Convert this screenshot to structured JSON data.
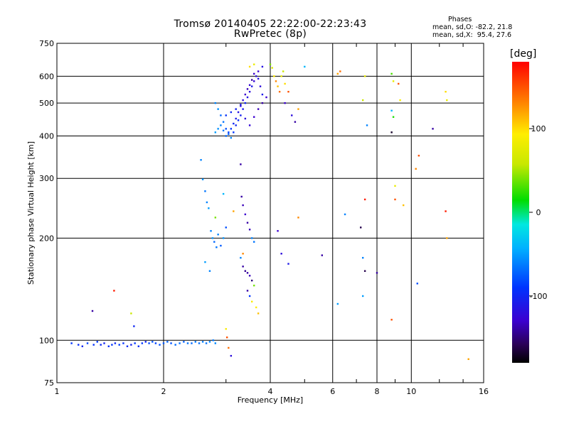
{
  "header": {
    "title_line1": "Tromsø 20140405 22:22:00-22:23:43",
    "title_line2": "RwPretec (8p)",
    "stats_title": "Phases",
    "stats_o": "mean, sd,O: -82.2, 21.8",
    "stats_x": "mean, sd,X:  95.4, 27.6"
  },
  "colorbar": {
    "unit": "[deg]",
    "range": [
      -180,
      180
    ],
    "ticks": [
      100,
      0,
      -100
    ],
    "tick_labels": [
      "100",
      "0",
      "-100"
    ]
  },
  "chart_data": {
    "type": "scatter",
    "title": "Tromsø 20140405 22:22:00-22:23:43",
    "subtitle": "RwPretec (8p)",
    "xlabel": "Frequency [MHz]",
    "ylabel": "Stationary phase Virtual Height [km]",
    "x_scale": "log",
    "y_scale": "log",
    "xlim": [
      1,
      16
    ],
    "ylim": [
      75,
      750
    ],
    "x_ticks": [
      1,
      2,
      4,
      6,
      8,
      10,
      16
    ],
    "x_tick_labels": [
      "1",
      "2",
      "4",
      "6",
      "8",
      "10",
      "16"
    ],
    "x_minor_ticks": [
      3,
      5,
      7,
      9,
      12,
      14
    ],
    "y_ticks": [
      75,
      100,
      200,
      300,
      400,
      500,
      600,
      750
    ],
    "y_tick_labels": [
      "75",
      "100",
      "200",
      "300",
      "400",
      "500",
      "600",
      "750"
    ],
    "grid": true,
    "color_by": "phase [deg]",
    "points": [
      [
        1.1,
        98,
        -90
      ],
      [
        1.15,
        97,
        -95
      ],
      [
        1.18,
        96,
        -100
      ],
      [
        1.22,
        98,
        -85
      ],
      [
        1.27,
        97,
        -92
      ],
      [
        1.3,
        99,
        -88
      ],
      [
        1.33,
        97,
        -98
      ],
      [
        1.36,
        98,
        -102
      ],
      [
        1.4,
        96,
        -95
      ],
      [
        1.43,
        97,
        -90
      ],
      [
        1.46,
        98,
        -100
      ],
      [
        1.5,
        97,
        -86
      ],
      [
        1.54,
        98,
        -92
      ],
      [
        1.58,
        96,
        -97
      ],
      [
        1.62,
        97,
        -104
      ],
      [
        1.66,
        98,
        -88
      ],
      [
        1.7,
        96,
        -95
      ],
      [
        1.74,
        98,
        -90
      ],
      [
        1.78,
        99,
        -100
      ],
      [
        1.82,
        98,
        -82
      ],
      [
        1.86,
        99,
        -78
      ],
      [
        1.9,
        98,
        -85
      ],
      [
        1.95,
        97,
        -80
      ],
      [
        2.0,
        98,
        -75
      ],
      [
        2.05,
        99,
        -72
      ],
      [
        2.1,
        98,
        -78
      ],
      [
        2.16,
        97,
        -70
      ],
      [
        2.22,
        98,
        -68
      ],
      [
        2.28,
        99,
        -74
      ],
      [
        2.34,
        98,
        -66
      ],
      [
        2.4,
        98,
        -70
      ],
      [
        2.46,
        99,
        -64
      ],
      [
        2.52,
        98,
        -68
      ],
      [
        2.58,
        99,
        -62
      ],
      [
        2.64,
        98,
        -66
      ],
      [
        2.7,
        99,
        -60
      ],
      [
        2.76,
        100,
        -64
      ],
      [
        2.8,
        98,
        -58
      ],
      [
        1.26,
        122,
        -140
      ],
      [
        1.45,
        140,
        170
      ],
      [
        1.62,
        120,
        60
      ],
      [
        1.65,
        110,
        -100
      ],
      [
        2.55,
        340,
        -60
      ],
      [
        2.58,
        298,
        -55
      ],
      [
        2.62,
        275,
        -65
      ],
      [
        2.65,
        255,
        -60
      ],
      [
        2.68,
        245,
        -50
      ],
      [
        2.72,
        210,
        -60
      ],
      [
        2.75,
        200,
        -55
      ],
      [
        2.78,
        195,
        -70
      ],
      [
        2.82,
        188,
        -65
      ],
      [
        2.85,
        205,
        -60
      ],
      [
        2.9,
        190,
        -75
      ],
      [
        2.95,
        200,
        -55
      ],
      [
        2.62,
        170,
        -50
      ],
      [
        2.7,
        160,
        -60
      ],
      [
        2.8,
        230,
        40
      ],
      [
        3.0,
        108,
        90
      ],
      [
        3.02,
        102,
        150
      ],
      [
        3.05,
        95,
        140
      ],
      [
        3.1,
        90,
        -120
      ],
      [
        2.95,
        270,
        -40
      ],
      [
        3.0,
        215,
        -80
      ],
      [
        3.3,
        330,
        -140
      ],
      [
        3.32,
        265,
        -140
      ],
      [
        3.35,
        250,
        -135
      ],
      [
        3.4,
        235,
        -130
      ],
      [
        3.45,
        222,
        -140
      ],
      [
        3.5,
        212,
        -135
      ],
      [
        3.55,
        200,
        -60
      ],
      [
        3.6,
        195,
        -65
      ],
      [
        3.3,
        175,
        -60
      ],
      [
        3.35,
        165,
        -140
      ],
      [
        3.4,
        160,
        -145
      ],
      [
        3.45,
        158,
        -140
      ],
      [
        3.5,
        155,
        -135
      ],
      [
        3.55,
        150,
        -150
      ],
      [
        3.45,
        140,
        -140
      ],
      [
        3.5,
        135,
        -90
      ],
      [
        3.55,
        130,
        90
      ],
      [
        3.6,
        145,
        40
      ],
      [
        3.65,
        125,
        95
      ],
      [
        3.15,
        240,
        120
      ],
      [
        3.35,
        180,
        130
      ],
      [
        3.7,
        120,
        110
      ],
      [
        4.2,
        210,
        -130
      ],
      [
        4.3,
        180,
        -120
      ],
      [
        4.5,
        168,
        -110
      ],
      [
        4.8,
        230,
        130
      ],
      [
        2.8,
        500,
        -60
      ],
      [
        2.85,
        480,
        -55
      ],
      [
        2.9,
        460,
        -70
      ],
      [
        2.95,
        440,
        -65
      ],
      [
        3.0,
        420,
        -80
      ],
      [
        3.05,
        405,
        -75
      ],
      [
        3.1,
        395,
        -60
      ],
      [
        3.15,
        410,
        -90
      ],
      [
        3.2,
        430,
        -100
      ],
      [
        3.25,
        445,
        -95
      ],
      [
        3.3,
        460,
        -105
      ],
      [
        3.35,
        480,
        -110
      ],
      [
        3.4,
        500,
        -100
      ],
      [
        3.45,
        520,
        -115
      ],
      [
        3.5,
        540,
        -120
      ],
      [
        3.55,
        560,
        -110
      ],
      [
        3.6,
        580,
        -125
      ],
      [
        3.65,
        600,
        -120
      ],
      [
        3.7,
        620,
        -130
      ],
      [
        3.8,
        640,
        -115
      ],
      [
        2.8,
        410,
        -50
      ],
      [
        2.85,
        420,
        -55
      ],
      [
        2.9,
        430,
        -60
      ],
      [
        2.95,
        415,
        -65
      ],
      [
        3.0,
        400,
        -70
      ],
      [
        3.05,
        410,
        -85
      ],
      [
        3.1,
        420,
        -90
      ],
      [
        3.15,
        435,
        -100
      ],
      [
        3.2,
        450,
        -110
      ],
      [
        3.25,
        470,
        -115
      ],
      [
        3.3,
        490,
        -120
      ],
      [
        3.35,
        510,
        -125
      ],
      [
        3.4,
        530,
        -130
      ],
      [
        3.45,
        550,
        -135
      ],
      [
        3.5,
        565,
        -125
      ],
      [
        3.55,
        585,
        -140
      ],
      [
        3.6,
        610,
        -130
      ],
      [
        3.7,
        590,
        -115
      ],
      [
        3.75,
        560,
        -120
      ],
      [
        3.8,
        530,
        -110
      ],
      [
        3.0,
        460,
        -95
      ],
      [
        3.1,
        470,
        -100
      ],
      [
        3.2,
        480,
        -105
      ],
      [
        3.3,
        495,
        -110
      ],
      [
        3.4,
        450,
        -120
      ],
      [
        3.5,
        430,
        -125
      ],
      [
        3.6,
        455,
        -130
      ],
      [
        3.7,
        480,
        -135
      ],
      [
        3.8,
        500,
        -140
      ],
      [
        3.9,
        520,
        -130
      ],
      [
        4.0,
        650,
        40
      ],
      [
        4.05,
        635,
        70
      ],
      [
        4.1,
        600,
        95
      ],
      [
        4.15,
        580,
        130
      ],
      [
        4.2,
        560,
        110
      ],
      [
        4.25,
        540,
        140
      ],
      [
        4.3,
        600,
        80
      ],
      [
        4.35,
        620,
        60
      ],
      [
        4.4,
        570,
        100
      ],
      [
        4.5,
        540,
        150
      ],
      [
        4.4,
        500,
        -130
      ],
      [
        4.6,
        460,
        -120
      ],
      [
        4.7,
        440,
        -140
      ],
      [
        4.8,
        480,
        120
      ],
      [
        3.5,
        640,
        100
      ],
      [
        3.6,
        650,
        80
      ],
      [
        5.0,
        640,
        -40
      ],
      [
        6.2,
        610,
        120
      ],
      [
        6.3,
        620,
        140
      ],
      [
        7.3,
        510,
        60
      ],
      [
        7.4,
        600,
        80
      ],
      [
        7.5,
        430,
        -60
      ],
      [
        8.8,
        610,
        30
      ],
      [
        8.9,
        580,
        80
      ],
      [
        9.2,
        570,
        150
      ],
      [
        9.3,
        510,
        90
      ],
      [
        8.8,
        475,
        -40
      ],
      [
        8.9,
        455,
        20
      ],
      [
        8.8,
        410,
        -170
      ],
      [
        11.5,
        420,
        -140
      ],
      [
        12.5,
        540,
        100
      ],
      [
        12.6,
        510,
        80
      ],
      [
        10.5,
        350,
        150
      ],
      [
        10.3,
        320,
        130
      ],
      [
        9.0,
        285,
        80
      ],
      [
        9.5,
        250,
        110
      ],
      [
        9.0,
        260,
        150
      ],
      [
        7.4,
        260,
        170
      ],
      [
        6.5,
        235,
        -60
      ],
      [
        7.2,
        215,
        -160
      ],
      [
        7.3,
        175,
        -60
      ],
      [
        7.4,
        160,
        -160
      ],
      [
        8.0,
        158,
        -140
      ],
      [
        7.3,
        135,
        -50
      ],
      [
        6.2,
        128,
        -50
      ],
      [
        8.8,
        115,
        150
      ],
      [
        10.4,
        147,
        -80
      ],
      [
        12.5,
        240,
        170
      ],
      [
        12.6,
        200,
        120
      ],
      [
        14.5,
        88,
        120
      ],
      [
        5.6,
        178,
        -140
      ]
    ]
  }
}
